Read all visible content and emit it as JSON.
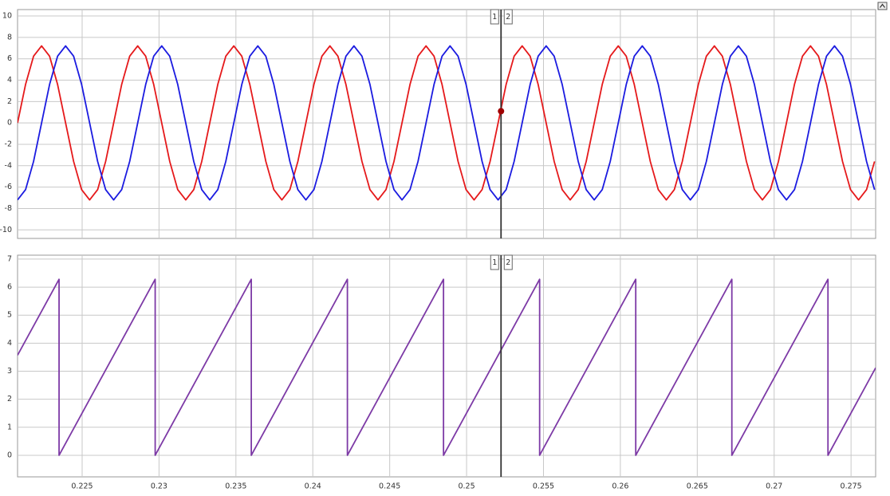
{
  "chart_data": [
    {
      "type": "line",
      "xlim": [
        0.2208,
        0.2766
      ],
      "ylim": [
        -10.8,
        10.6
      ],
      "xticks": [
        0.225,
        0.23,
        0.235,
        0.24,
        0.245,
        0.25,
        0.255,
        0.26,
        0.265,
        0.27,
        0.275
      ],
      "yticks": [
        -10,
        -8,
        -6,
        -4,
        -2,
        0,
        2,
        4,
        6,
        8,
        10
      ],
      "grid": true,
      "show_xtick_labels": false,
      "x": [
        0.2208,
        0.221321,
        0.221842,
        0.222363,
        0.222883,
        0.223404,
        0.223925,
        0.224446,
        0.224967,
        0.225488,
        0.226008,
        0.226529,
        0.22705,
        0.227571,
        0.228092,
        0.228613,
        0.229133,
        0.229654,
        0.230175,
        0.230696,
        0.231217,
        0.231738,
        0.232258,
        0.232779,
        0.2333,
        0.233821,
        0.234342,
        0.234863,
        0.235383,
        0.235904,
        0.236425,
        0.236946,
        0.237467,
        0.237988,
        0.238508,
        0.239029,
        0.23955,
        0.240071,
        0.240592,
        0.241113,
        0.241633,
        0.242154,
        0.242675,
        0.243196,
        0.243717,
        0.244238,
        0.244758,
        0.245279,
        0.2458,
        0.246321,
        0.246842,
        0.247363,
        0.247883,
        0.248404,
        0.248925,
        0.249446,
        0.249967,
        0.250488,
        0.251008,
        0.251529,
        0.25205,
        0.252571,
        0.253092,
        0.253613,
        0.254133,
        0.254654,
        0.255175,
        0.255696,
        0.256217,
        0.256738,
        0.257258,
        0.257779,
        0.2583,
        0.258821,
        0.259342,
        0.259863,
        0.260383,
        0.260904,
        0.261425,
        0.261946,
        0.262467,
        0.262988,
        0.263508,
        0.264029,
        0.26455,
        0.265071,
        0.265592,
        0.266113,
        0.266633,
        0.267154,
        0.267675,
        0.268196,
        0.268717,
        0.269238,
        0.269758,
        0.270279,
        0.2708,
        0.271321,
        0.271842,
        0.272363,
        0.272883,
        0.273404,
        0.273925,
        0.274446,
        0.274967,
        0.275488,
        0.276008,
        0.276529
      ],
      "series": [
        {
          "color": "#e5191b",
          "values": [
            0,
            3.6,
            6.24,
            7.2,
            6.24,
            3.6,
            0,
            -3.6,
            -6.24,
            -7.2,
            -6.24,
            -3.6,
            0,
            3.6,
            6.24,
            7.2,
            6.24,
            3.6,
            0,
            -3.6,
            -6.24,
            -7.2,
            -6.24,
            -3.6,
            0,
            3.6,
            6.24,
            7.2,
            6.24,
            3.6,
            0,
            -3.6,
            -6.24,
            -7.2,
            -6.24,
            -3.6,
            0,
            3.6,
            6.24,
            7.2,
            6.24,
            3.6,
            0,
            -3.6,
            -6.24,
            -7.2,
            -6.24,
            -3.6,
            0,
            3.6,
            6.24,
            7.2,
            6.24,
            3.6,
            0,
            -3.6,
            -6.24,
            -7.2,
            -6.24,
            -3.6,
            0,
            3.6,
            6.24,
            7.2,
            6.24,
            3.6,
            0,
            -3.6,
            -6.24,
            -7.2,
            -6.24,
            -3.6,
            0,
            3.6,
            6.24,
            7.2,
            6.24,
            3.6,
            0,
            -3.6,
            -6.24,
            -7.2,
            -6.24,
            -3.6,
            0,
            3.6,
            6.24,
            7.2,
            6.24,
            3.6,
            0,
            -3.6,
            -6.24,
            -7.2,
            -6.24,
            -3.6,
            0,
            3.6,
            6.24,
            7.2,
            6.24,
            3.6,
            0,
            -3.6,
            -6.24,
            -7.2,
            -6.24,
            -3.6
          ]
        },
        {
          "color": "#1b1be0",
          "values": [
            -7.2,
            -6.24,
            -3.6,
            0,
            3.6,
            6.24,
            7.2,
            6.24,
            3.6,
            0,
            -3.6,
            -6.24,
            -7.2,
            -6.24,
            -3.6,
            0,
            3.6,
            6.24,
            7.2,
            6.24,
            3.6,
            0,
            -3.6,
            -6.24,
            -7.2,
            -6.24,
            -3.6,
            0,
            3.6,
            6.24,
            7.2,
            6.24,
            3.6,
            0,
            -3.6,
            -6.24,
            -7.2,
            -6.24,
            -3.6,
            0,
            3.6,
            6.24,
            7.2,
            6.24,
            3.6,
            0,
            -3.6,
            -6.24,
            -7.2,
            -6.24,
            -3.6,
            0,
            3.6,
            6.24,
            7.2,
            6.24,
            3.6,
            0,
            -3.6,
            -6.24,
            -7.2,
            -6.24,
            -3.6,
            0,
            3.6,
            6.24,
            7.2,
            6.24,
            3.6,
            0,
            -3.6,
            -6.24,
            -7.2,
            -6.24,
            -3.6,
            0,
            3.6,
            6.24,
            7.2,
            6.24,
            3.6,
            0,
            -3.6,
            -6.24,
            -7.2,
            -6.24,
            -3.6,
            0,
            3.6,
            6.24,
            7.2,
            6.24,
            3.6,
            0,
            -3.6,
            -6.24,
            -7.2,
            -6.24,
            -3.6,
            0,
            3.6,
            6.24,
            7.2,
            6.24,
            3.6,
            0,
            -3.6,
            -6.24
          ]
        }
      ],
      "cursor": {
        "x": 0.25224,
        "labels": [
          "1",
          "2"
        ],
        "marker": 1.1,
        "marker_color": "#a00000"
      }
    },
    {
      "type": "line",
      "xlim": [
        0.2208,
        0.2766
      ],
      "ylim": [
        -0.77,
        7.14
      ],
      "xticks": [
        0.225,
        0.23,
        0.235,
        0.24,
        0.245,
        0.25,
        0.255,
        0.26,
        0.265,
        0.27,
        0.275
      ],
      "yticks": [
        0,
        1,
        2,
        3,
        4,
        5,
        6,
        7
      ],
      "grid": true,
      "show_xtick_labels": true,
      "x": [
        0.2208,
        0.2235,
        0.2235,
        0.22975,
        0.22975,
        0.236,
        0.236,
        0.24225,
        0.24225,
        0.2485,
        0.2485,
        0.25475,
        0.25475,
        0.261,
        0.261,
        0.26725,
        0.26725,
        0.2735,
        0.2735,
        0.2766
      ],
      "series": [
        {
          "color": "#7d3aa6",
          "values": [
            3.57,
            6.28,
            0,
            6.28,
            0,
            6.28,
            0,
            6.28,
            0,
            6.28,
            0,
            6.28,
            0,
            6.28,
            0,
            6.28,
            0,
            6.28,
            0,
            3.12
          ]
        }
      ],
      "cursor": {
        "x": 0.25224,
        "labels": [
          "1",
          "2"
        ]
      }
    }
  ]
}
